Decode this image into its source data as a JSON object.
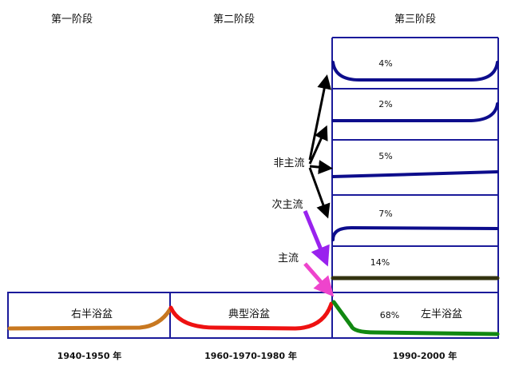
{
  "stages": [
    "第一阶段",
    "第二阶段",
    "第三阶段"
  ],
  "periods": [
    "1940-1950 年",
    "1960-1970-1980 年",
    "1990-2000 年"
  ],
  "bottom_labels": {
    "right_half": "右半浴盆",
    "typical": "典型浴盆",
    "left_half": "左半浴盆",
    "left_half_pct": "68%"
  },
  "stack_pcts": [
    "4%",
    "2%",
    "5%",
    "7%",
    "14%"
  ],
  "arrow_labels": {
    "non_mainstream": "非主流",
    "sub_mainstream": "次主流",
    "mainstream": "主流"
  },
  "colors": {
    "frame": "#1a1a9a",
    "curve_blue": "#0d0d8c",
    "brown": "#c87820",
    "red": "#ee1111",
    "green": "#118811",
    "olive": "#33330f",
    "purple": "#9922ee",
    "pink": "#ee44cc",
    "arrow": "#000000"
  }
}
